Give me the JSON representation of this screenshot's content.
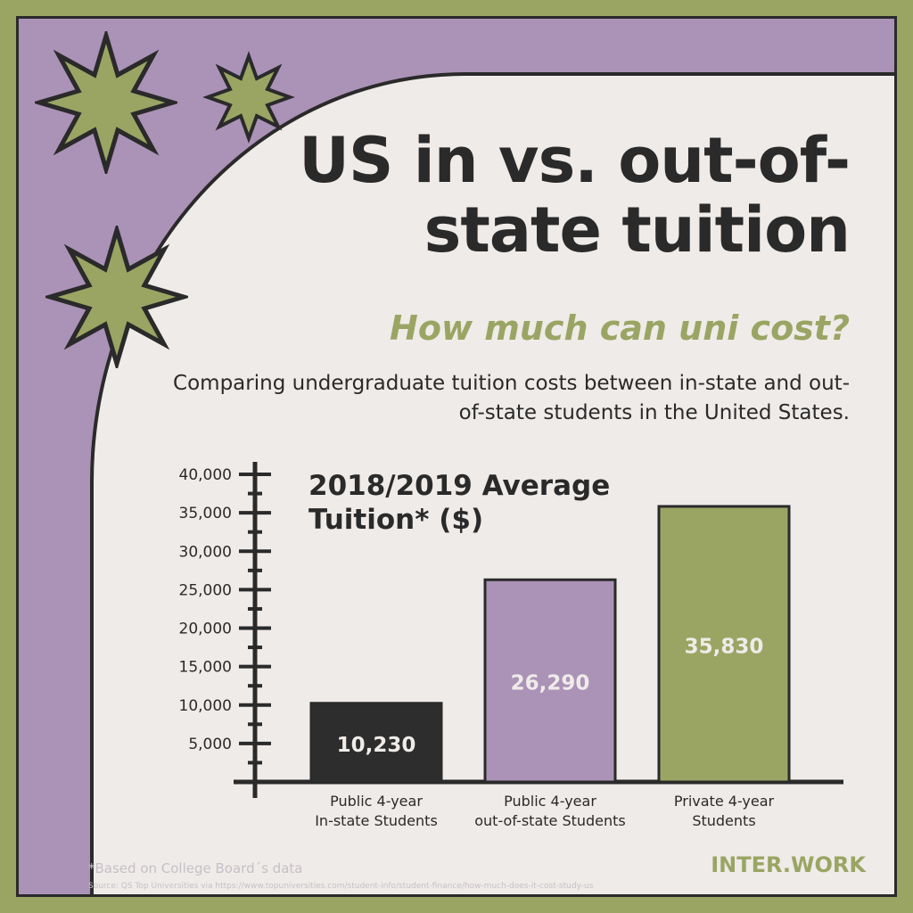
{
  "header": {
    "title": "US in vs. out-of-state tuition",
    "subtitle": "How much can uni cost?",
    "description": "Comparing undergraduate tuition costs between in-state and out-of-state students in the United States."
  },
  "chart_data": {
    "type": "bar",
    "title": "2018/2019 Average Tuition* ($)",
    "categories": [
      [
        "Public 4-year",
        "In-state Students"
      ],
      [
        "Public 4-year",
        "out-of-state Students"
      ],
      [
        "Private 4-year",
        "Students"
      ]
    ],
    "values": [
      10230,
      26290,
      35830
    ],
    "value_labels": [
      "10,230",
      "26,290",
      "35,830"
    ],
    "bar_colors": [
      "#2d2d2d",
      "#ab92b7",
      "#9aa564"
    ],
    "value_label_colors": [
      "#efebe8",
      "#efebe8",
      "#efebe8"
    ],
    "ylim": [
      0,
      40000
    ],
    "yticks": [
      5000,
      10000,
      15000,
      20000,
      25000,
      30000,
      35000,
      40000
    ],
    "ytick_labels": [
      "5,000",
      "10,000",
      "15,000",
      "20,000",
      "25,000",
      "30,000",
      "35,000",
      "40,000"
    ],
    "grid": false
  },
  "footer": {
    "note": "*Based on College Board´s data",
    "source": "Source: QS Top Universities via https://www.topuniversities.com/student-info/student-finance/how-much-does-it-cost-study-us",
    "logo": "INTER.WORK"
  },
  "colors": {
    "purple": "#ab92b7",
    "olive": "#9aa564",
    "cream": "#efebe8",
    "dark": "#2a2a2a"
  },
  "icons": [
    "star-icon"
  ]
}
